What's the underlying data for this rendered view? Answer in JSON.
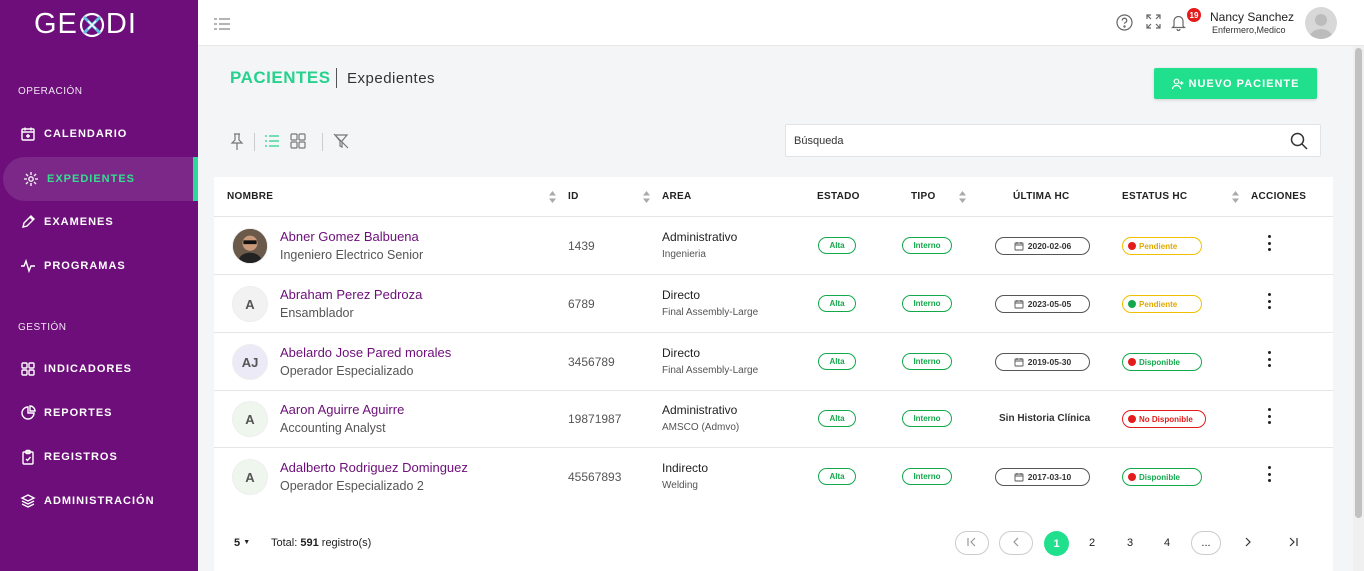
{
  "app": {
    "logo_left": "GE",
    "logo_right": "DI"
  },
  "sidebar": {
    "sections": [
      {
        "label": "OPERACIÓN"
      },
      {
        "label": "GESTIÓN"
      }
    ],
    "items": [
      {
        "label": "CALENDARIO",
        "icon": "calendar-icon"
      },
      {
        "label": "EXPEDIENTES",
        "icon": "medical-icon",
        "active": true
      },
      {
        "label": "EXAMENES",
        "icon": "pen-icon"
      },
      {
        "label": "PROGRAMAS",
        "icon": "pulse-icon"
      },
      {
        "label": "INDICADORES",
        "icon": "grid-icon"
      },
      {
        "label": "REPORTES",
        "icon": "pie-icon"
      },
      {
        "label": "REGISTROS",
        "icon": "clipboard-icon"
      },
      {
        "label": "ADMINISTRACIÓN",
        "icon": "layers-icon"
      }
    ],
    "accent": "#2fd89b",
    "background": "#6d0e7a"
  },
  "topbar": {
    "notification_count": "19",
    "user_name": "Nancy Sanchez",
    "user_role": "Enfermero,Medico"
  },
  "page": {
    "title": "PACIENTES",
    "subtitle": "Expedientes",
    "new_button": "NUEVO PACIENTE"
  },
  "search": {
    "placeholder": "Búsqueda"
  },
  "table": {
    "headers": [
      "NOMBRE",
      "ID",
      "AREA",
      "ESTADO",
      "TIPO",
      "ÚLTIMA HC",
      "ESTATUS HC",
      "ACCIONES"
    ],
    "rows": [
      {
        "initials": "",
        "photo": true,
        "name": "Abner Gomez Balbuena",
        "job": "Ingeniero Electrico Senior",
        "id": "1439",
        "area": "Administrativo",
        "area_sub": "Ingenieria",
        "estado": "Alta",
        "tipo": "Interno",
        "ultima_hc": "2020-02-06",
        "estatus": "Pendiente",
        "estatus_color": "#e41b1b",
        "estatus_border": "#f0c000",
        "estatus_text": "#e0a800"
      },
      {
        "initials": "A",
        "name": "Abraham Perez Pedroza",
        "job": "Ensamblador",
        "id": "6789",
        "area": "Directo",
        "area_sub": "Final Assembly-Large",
        "estado": "Alta",
        "tipo": "Interno",
        "ultima_hc": "2023-05-05",
        "estatus": "Pendiente",
        "estatus_color": "#14a84c",
        "estatus_border": "#f0c000",
        "estatus_text": "#e0a800"
      },
      {
        "initials": "AJ",
        "name": "Abelardo Jose Pared morales",
        "job": "Operador Especializado",
        "id": "3456789",
        "area": "Directo",
        "area_sub": "Final Assembly-Large",
        "estado": "Alta",
        "tipo": "Interno",
        "ultima_hc": "2019-05-30",
        "estatus": "Disponible",
        "estatus_color": "#e41b1b",
        "estatus_border": "#14a84c",
        "estatus_text": "#14a84c"
      },
      {
        "initials": "A",
        "name": "Aaron Aguirre Aguirre",
        "job": "Accounting Analyst",
        "id": "19871987",
        "area": "Administrativo",
        "area_sub": "AMSCO (Admvo)",
        "estado": "Alta",
        "tipo": "Interno",
        "ultima_hc": "Sin Historia Clínica",
        "estatus": "No Disponible",
        "estatus_color": "#e41b1b",
        "estatus_border": "#e41b1b",
        "estatus_text": "#e41b1b"
      },
      {
        "initials": "A",
        "name": "Adalberto Rodriguez Dominguez",
        "job": "Operador Especializado 2",
        "id": "45567893",
        "area": "Indirecto",
        "area_sub": "Welding",
        "estado": "Alta",
        "tipo": "Interno",
        "ultima_hc": "2017-03-10",
        "estatus": "Disponible",
        "estatus_color": "#e41b1b",
        "estatus_border": "#14a84c",
        "estatus_text": "#14a84c"
      }
    ]
  },
  "pagination": {
    "page_size": "5",
    "total_label": "Total:",
    "total_count": "591",
    "total_suffix": "registro(s)",
    "pages": [
      "1",
      "2",
      "3",
      "4"
    ],
    "ellipsis": "...",
    "current": "1"
  }
}
